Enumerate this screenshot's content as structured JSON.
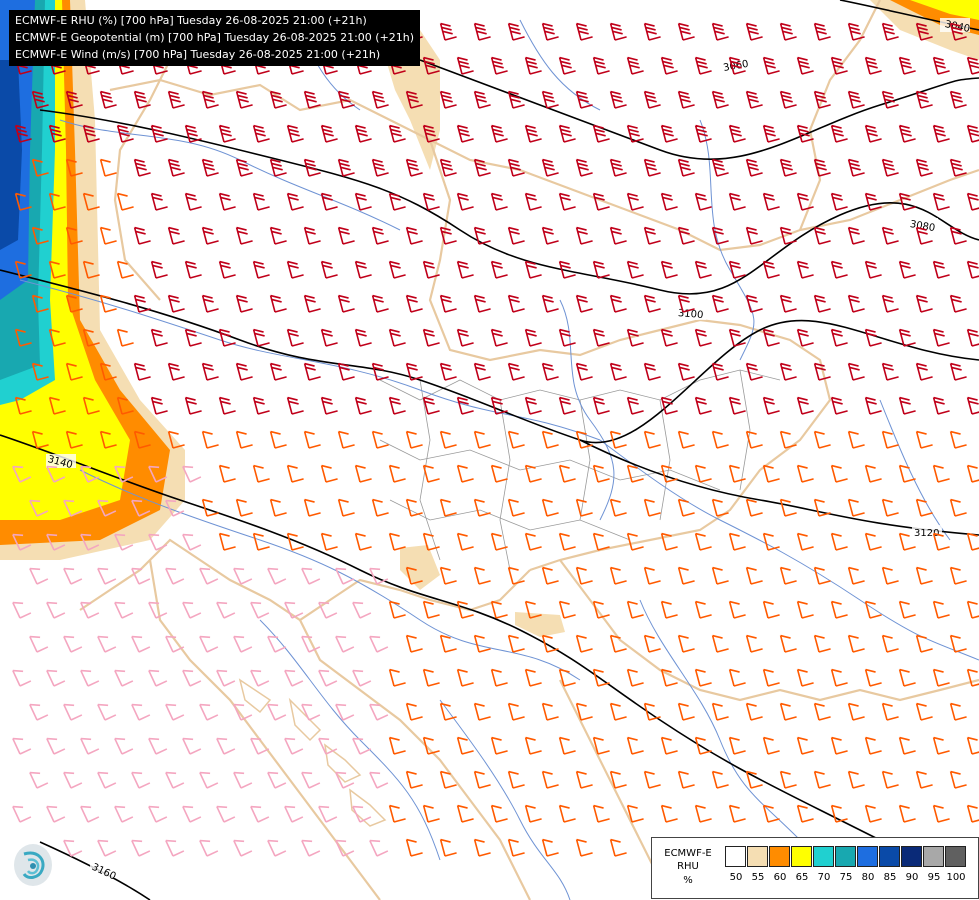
{
  "titles": [
    "ECMWF-E RHU (%) [700 hPa] Tuesday 26-08-2025 21:00 (+21h)",
    "ECMWF-E Geopotential (m) [700 hPa] Tuesday 26-08-2025 21:00 (+21h)",
    "ECMWF-E Wind (m/s) [700 hPa] Tuesday 26-08-2025 21:00 (+21h)"
  ],
  "legend": {
    "model": "ECMWF-E",
    "parameter": "RHU",
    "unit": "%",
    "classes": [
      {
        "label": "50",
        "color": "#ffffff"
      },
      {
        "label": "55",
        "color": "#f5deb3"
      },
      {
        "label": "60",
        "color": "#ff8c00"
      },
      {
        "label": "65",
        "color": "#ffff00"
      },
      {
        "label": "70",
        "color": "#20d0d0"
      },
      {
        "label": "75",
        "color": "#18a8b0"
      },
      {
        "label": "80",
        "color": "#1e6ee0"
      },
      {
        "label": "85",
        "color": "#0a4aa8"
      },
      {
        "label": "90",
        "color": "#0a2a78"
      },
      {
        "label": "95",
        "color": "#a8a8a8"
      },
      {
        "label": "100",
        "color": "#606060"
      }
    ]
  },
  "contours": [
    {
      "label": "3040"
    },
    {
      "label": "3060"
    },
    {
      "label": "3080"
    },
    {
      "label": "3100"
    },
    {
      "label": "3120"
    },
    {
      "label": "3140"
    },
    {
      "label": "3160"
    }
  ],
  "wind_colors": {
    "strong": "#c0001a",
    "medium": "#ff5a00",
    "weak": "#f4a6c0"
  },
  "map_colors": {
    "borders": "#e8c9a0",
    "rivers": "#6f93d4",
    "admin": "#9a9a9a"
  },
  "logo": {
    "icon": "weather-service-logo-icon"
  }
}
